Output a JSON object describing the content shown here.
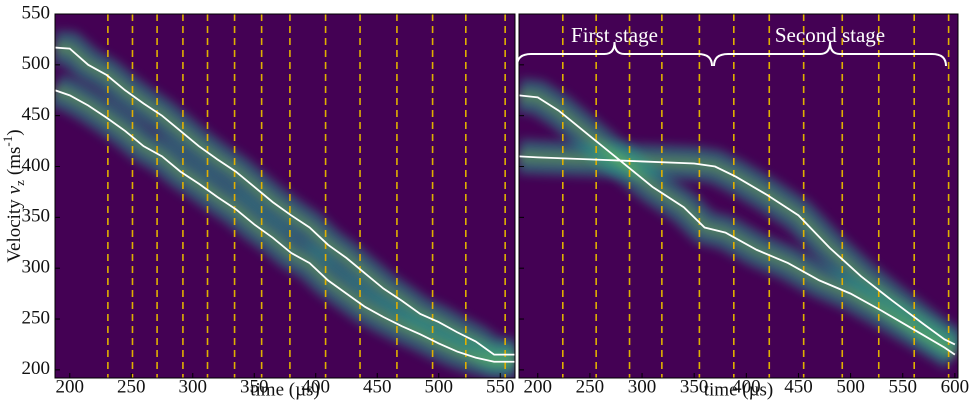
{
  "chart_data": [
    {
      "type": "line",
      "background": "#440154",
      "xlim": [
        188,
        562
      ],
      "ylim": [
        192,
        550
      ],
      "xticks": [
        200,
        250,
        300,
        350,
        400,
        450,
        500,
        550
      ],
      "yticks": [
        200,
        250,
        300,
        350,
        400,
        450,
        500,
        550
      ],
      "x_label": "time (µs)",
      "y_label": {
        "word": "Velocity",
        "var": "v",
        "sub": "z",
        "unit": "(ms",
        "sup": "-1",
        "close": ")"
      },
      "vlines": [
        231,
        251,
        271,
        292,
        312,
        334,
        356,
        379,
        408,
        436,
        466,
        495,
        522,
        554
      ],
      "vline_color": "#e0b000",
      "series": [
        {
          "color": "#ffffff",
          "x": [
            188,
            200,
            215,
            230,
            245,
            260,
            275,
            290,
            305,
            320,
            335,
            350,
            365,
            380,
            395,
            410,
            425,
            440,
            455,
            470,
            485,
            500,
            515,
            530,
            545,
            550,
            562
          ],
          "values": [
            517,
            516,
            500,
            490,
            475,
            462,
            450,
            435,
            420,
            407,
            395,
            380,
            365,
            352,
            340,
            323,
            310,
            295,
            280,
            268,
            255,
            247,
            237,
            228,
            215,
            215,
            215
          ]
        },
        {
          "color": "#ffffff",
          "x": [
            188,
            200,
            215,
            230,
            245,
            260,
            275,
            290,
            305,
            320,
            335,
            350,
            365,
            380,
            395,
            410,
            425,
            440,
            455,
            470,
            485,
            500,
            515,
            530,
            545,
            550,
            562
          ],
          "values": [
            475,
            470,
            460,
            448,
            435,
            420,
            410,
            395,
            383,
            370,
            358,
            343,
            330,
            315,
            305,
            288,
            275,
            262,
            252,
            243,
            235,
            226,
            218,
            212,
            208,
            208,
            208
          ]
        }
      ]
    },
    {
      "type": "line",
      "background": "#440154",
      "xlim": [
        182,
        603
      ],
      "ylim": [
        192,
        550
      ],
      "xticks": [
        200,
        250,
        300,
        350,
        400,
        450,
        500,
        550,
        600
      ],
      "yticks": [
        200,
        250,
        300,
        350,
        400,
        450,
        500,
        550
      ],
      "x_label": "time (µs)",
      "annotations": [
        "First stage",
        "Second stage"
      ],
      "vlines": [
        224,
        256,
        288,
        319,
        355,
        388,
        422,
        455,
        492,
        527,
        561,
        594
      ],
      "vline_color": "#e0b000",
      "series": [
        {
          "color": "#ffffff",
          "x": [
            182,
            200,
            250,
            300,
            350,
            370,
            390,
            420,
            450,
            480,
            510,
            540,
            570,
            590,
            600
          ],
          "values": [
            410,
            409,
            407,
            405,
            403,
            400,
            390,
            372,
            352,
            320,
            292,
            268,
            245,
            230,
            225
          ]
        },
        {
          "color": "#ffffff",
          "x": [
            182,
            200,
            220,
            250,
            280,
            310,
            340,
            360,
            380,
            410,
            440,
            470,
            500,
            530,
            560,
            590,
            600
          ],
          "values": [
            470,
            468,
            455,
            430,
            405,
            380,
            360,
            340,
            335,
            318,
            305,
            288,
            275,
            258,
            240,
            222,
            215
          ]
        }
      ]
    }
  ]
}
